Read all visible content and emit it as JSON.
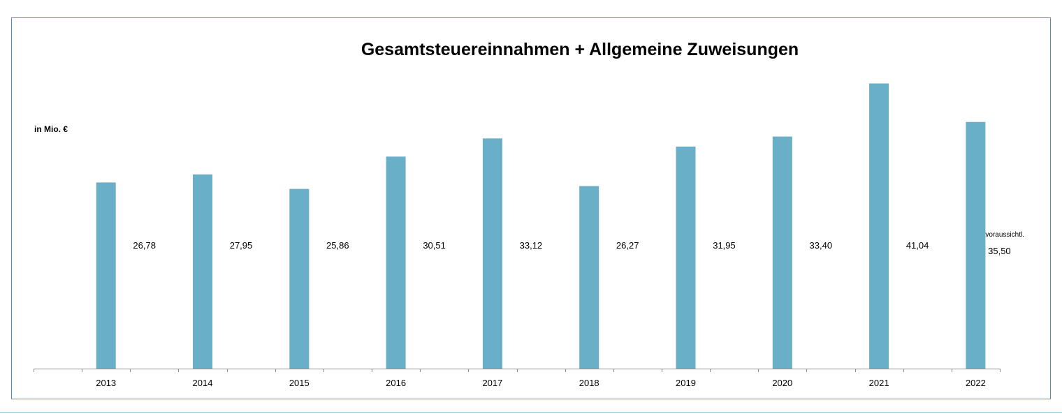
{
  "chart_data": {
    "type": "bar",
    "title": "Gesamtsteuereinnahmen + Allgemeine Zuweisungen",
    "ylabel": "in Mio. €",
    "xlabel": "",
    "categories": [
      "2013",
      "2014",
      "2015",
      "2016",
      "2017",
      "2018",
      "2019",
      "2020",
      "2021",
      "2022"
    ],
    "values": [
      26.78,
      27.95,
      25.86,
      30.51,
      33.12,
      26.27,
      31.95,
      33.4,
      41.04,
      35.5
    ],
    "data_labels": [
      "26,78",
      "27,95",
      "25,86",
      "30,51",
      "33,12",
      "26,27",
      "31,95",
      "33,40",
      "41,04",
      "35,50"
    ],
    "annotation": "voraussichtl.",
    "ylim": [
      0,
      43
    ],
    "grid": false,
    "legend": "none",
    "bar_color": "#6aafc8"
  }
}
